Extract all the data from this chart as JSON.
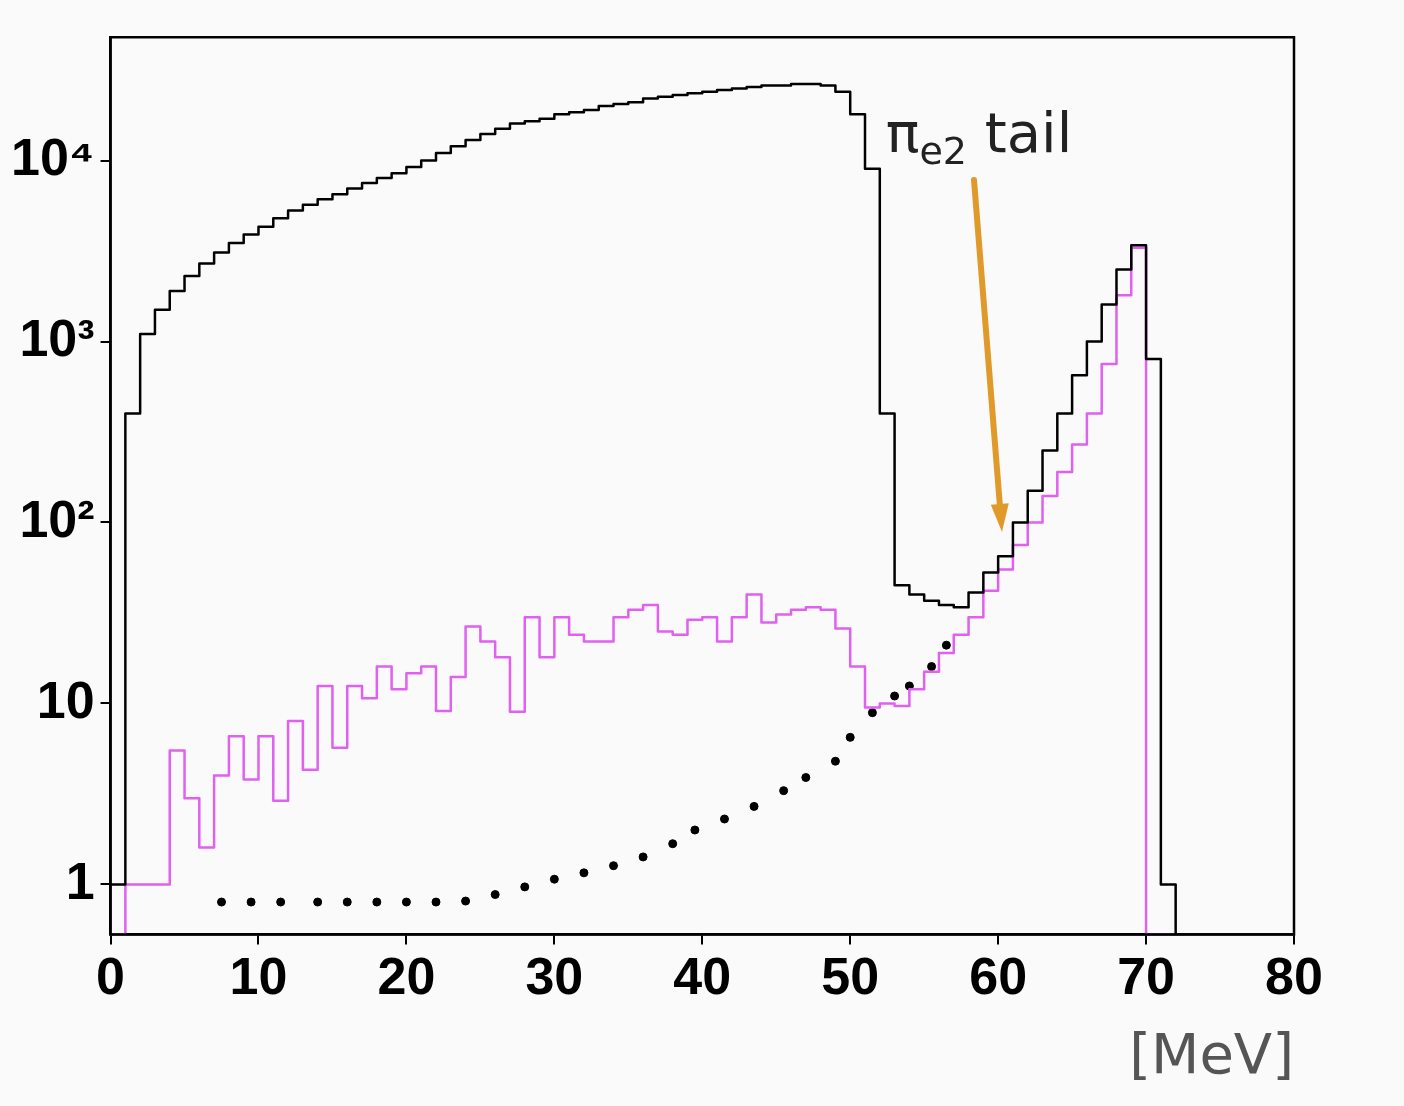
{
  "chart_data": {
    "type": "histogram",
    "xlabel": "[MeV]",
    "log": "y",
    "xlim": [
      0,
      80
    ],
    "xticks": [
      0,
      10,
      20,
      30,
      40,
      50,
      60,
      70,
      80
    ],
    "ylim": [
      0.53,
      48000
    ],
    "yticks": [
      1,
      10,
      {
        "value": 100,
        "label": "10²"
      },
      {
        "value": 1000,
        "label": "10³"
      },
      {
        "value": 10000,
        "label": "10⁴"
      }
    ],
    "bins": [
      0,
      1,
      2,
      3,
      4,
      5,
      6,
      7,
      8,
      9,
      10,
      11,
      12,
      13,
      14,
      15,
      16,
      17,
      18,
      19,
      20,
      21,
      22,
      23,
      24,
      25,
      26,
      27,
      28,
      29,
      30,
      31,
      32,
      33,
      34,
      35,
      36,
      37,
      38,
      39,
      40,
      41,
      42,
      43,
      44,
      45,
      46,
      47,
      48,
      49,
      50,
      51,
      52,
      53,
      54,
      55,
      56,
      57,
      58,
      59,
      60,
      61,
      62,
      63,
      64,
      65,
      66,
      67,
      68,
      69,
      70,
      71,
      72,
      73,
      74,
      75,
      76,
      77,
      78,
      79,
      80
    ],
    "series": [
      {
        "color": "#000000",
        "values": [
          1,
          400,
          1100,
          1500,
          1900,
          2300,
          2700,
          3100,
          3500,
          3900,
          4300,
          4800,
          5300,
          5700,
          6100,
          6500,
          7000,
          7500,
          8000,
          8500,
          9200,
          10000,
          11000,
          12000,
          13000,
          14000,
          15000,
          16000,
          16500,
          17000,
          18000,
          18500,
          19000,
          20000,
          20500,
          21000,
          22000,
          22500,
          23000,
          23500,
          24000,
          24500,
          25000,
          25500,
          26000,
          26000,
          26500,
          26500,
          26000,
          24000,
          18000,
          9000,
          400,
          45,
          40,
          37,
          35,
          34,
          41,
          53,
          65,
          100,
          150,
          250,
          400,
          650,
          1000,
          1600,
          2500,
          3400,
          800,
          1,
          null,
          null,
          null,
          null,
          null,
          null,
          null,
          null
        ]
      },
      {
        "color": "#e060f0",
        "values": [
          null,
          1,
          1,
          1,
          5.5,
          3,
          1.6,
          4,
          6.6,
          3.8,
          6.6,
          2.9,
          8,
          4.3,
          12.5,
          5.7,
          12.5,
          10.7,
          16,
          12,
          14.7,
          16,
          9.1,
          14,
          26.6,
          22,
          18,
          9,
          30,
          18,
          30,
          24,
          22,
          22,
          30,
          33,
          35,
          25,
          24,
          29,
          30,
          22,
          30,
          40,
          28,
          31,
          33,
          34,
          33,
          26,
          16,
          9.5,
          10,
          9.7,
          12,
          15,
          19,
          24,
          30,
          42,
          55,
          75,
          100,
          140,
          190,
          270,
          400,
          750,
          1800,
          3300,
          null,
          null,
          null,
          null,
          null,
          null,
          null,
          null,
          null,
          null
        ]
      },
      {
        "type": "scatter",
        "color": "#000000",
        "marker": "circle",
        "x": [
          7.5,
          9.5,
          11.5,
          14,
          16,
          18,
          20,
          22,
          24,
          26,
          28,
          30,
          32,
          34,
          36,
          38,
          39.5,
          41.5,
          43.5,
          45.5,
          47,
          49,
          50,
          51.5,
          53,
          54,
          55.5,
          56.5
        ],
        "values": [
          0.8,
          0.8,
          0.8,
          0.8,
          0.8,
          0.8,
          0.8,
          0.8,
          0.81,
          0.88,
          0.97,
          1.07,
          1.16,
          1.27,
          1.42,
          1.68,
          2,
          2.3,
          2.7,
          3.3,
          3.9,
          4.8,
          6.5,
          8.9,
          11,
          12.5,
          16,
          21
        ]
      }
    ],
    "annotations": [
      "π$_{e2}$ tail"
    ]
  }
}
